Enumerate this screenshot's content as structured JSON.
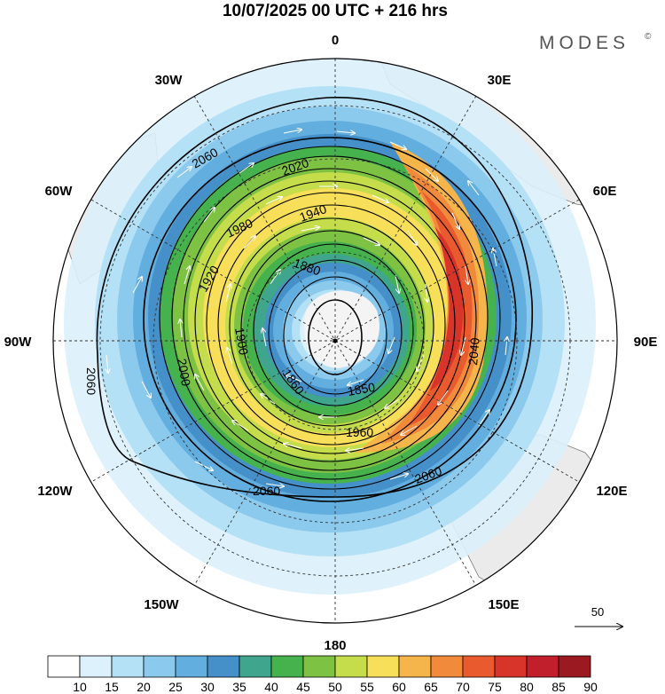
{
  "title": "10/07/2025  00 UTC  + 216 hrs",
  "brand": "MODES",
  "brand_mark": "©",
  "longitude_labels": {
    "top": "0",
    "top_right": "30E",
    "right_upper": "60E",
    "right": "90E",
    "right_lower": "120E",
    "bottom_right": "150E",
    "bottom": "180",
    "bottom_left": "150W",
    "left_lower": "120W",
    "left": "90W",
    "left_upper": "60W",
    "top_left": "30W"
  },
  "contour_labels": [
    "1860",
    "1850",
    "1880",
    "1900",
    "1920",
    "1940",
    "1960",
    "1980",
    "2000",
    "2020",
    "2040",
    "2060"
  ],
  "reference_vector": {
    "value": "50"
  },
  "colorbar": {
    "ticks": [
      "10",
      "15",
      "20",
      "25",
      "30",
      "35",
      "40",
      "45",
      "50",
      "55",
      "60",
      "65",
      "70",
      "75",
      "80",
      "85",
      "90"
    ],
    "colors": [
      "#ffffff",
      "#dcf1fb",
      "#b5e1f6",
      "#8ccaed",
      "#62aedf",
      "#4590c8",
      "#3fa58c",
      "#45b24d",
      "#7ec243",
      "#c5dc4b",
      "#f8df5a",
      "#f6b54b",
      "#f28a3c",
      "#ea5a2f",
      "#d9342a",
      "#c01f2b",
      "#9b1a22"
    ]
  }
}
